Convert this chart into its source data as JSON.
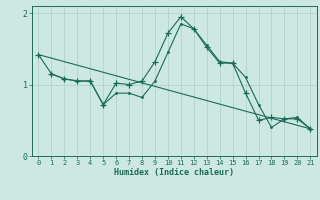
{
  "xlabel": "Humidex (Indice chaleur)",
  "bg_color": "#cce8e0",
  "line_color": "#1a6b5a",
  "grid_color": "#aacfc8",
  "xlim": [
    -0.5,
    21.5
  ],
  "ylim": [
    0,
    2.1
  ],
  "xticks": [
    0,
    1,
    2,
    3,
    4,
    5,
    6,
    7,
    8,
    9,
    10,
    11,
    12,
    13,
    14,
    15,
    16,
    17,
    18,
    19,
    20,
    21
  ],
  "yticks": [
    0,
    1,
    2
  ],
  "line1_x": [
    0,
    1,
    2,
    3,
    4,
    5,
    6,
    7,
    8,
    9,
    10,
    11,
    12,
    13,
    14,
    15,
    16,
    17,
    18,
    19,
    20,
    21
  ],
  "line1_y": [
    1.42,
    1.15,
    1.08,
    1.05,
    1.05,
    0.72,
    1.02,
    1.0,
    1.05,
    1.32,
    1.72,
    1.95,
    1.78,
    1.52,
    1.3,
    1.3,
    0.88,
    0.5,
    0.54,
    0.52,
    0.52,
    0.38
  ],
  "line2_x": [
    1,
    2,
    3,
    4,
    5,
    6,
    7,
    8,
    9,
    10,
    11,
    12,
    13,
    14,
    15,
    16,
    17,
    18,
    19,
    20,
    21
  ],
  "line2_y": [
    1.15,
    1.08,
    1.05,
    1.05,
    0.72,
    0.88,
    0.88,
    0.82,
    1.05,
    1.45,
    1.85,
    1.78,
    1.55,
    1.32,
    1.3,
    1.1,
    0.72,
    0.4,
    0.52,
    0.54,
    0.38
  ],
  "line3_x": [
    0,
    21
  ],
  "line3_y": [
    1.42,
    0.38
  ]
}
